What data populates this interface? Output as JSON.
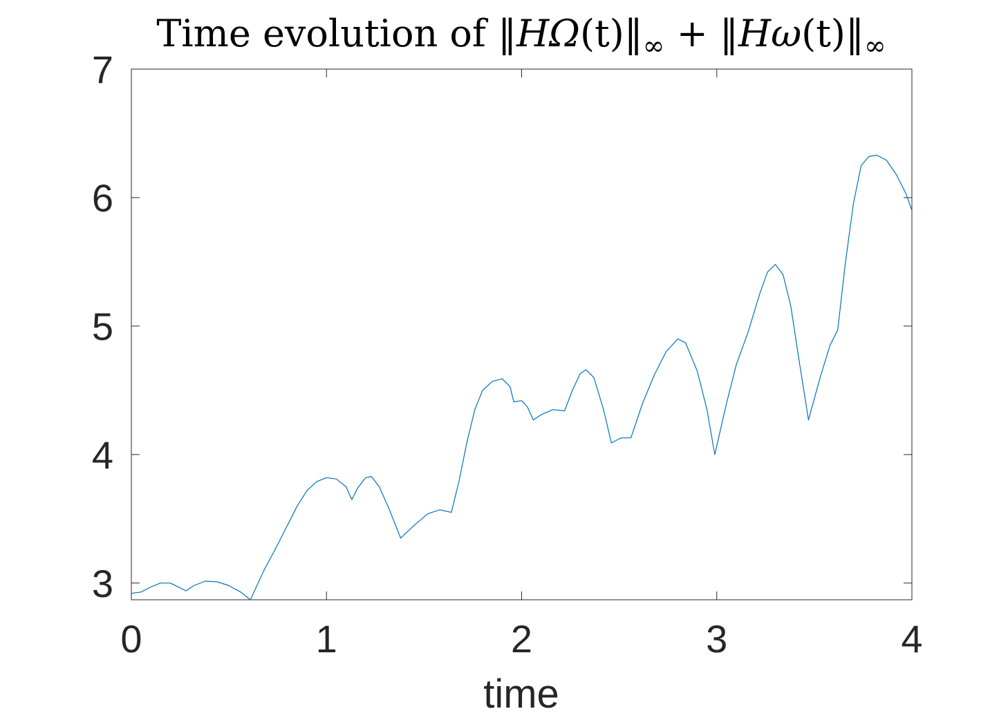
{
  "chart_data": {
    "type": "line",
    "title": {
      "prefix": "Time evolution of ",
      "term1_var": "HΩ",
      "term1_arg": "(t)",
      "plus": " + ",
      "term2_var": "Hω",
      "term2_arg": "(t)",
      "norm": "‖",
      "sub": "∞"
    },
    "xlabel": "time",
    "ylabel": "",
    "xlim": [
      0,
      4
    ],
    "ylim": [
      2.87,
      7
    ],
    "xticks": [
      0,
      1,
      2,
      3,
      4
    ],
    "yticks": [
      3,
      4,
      5,
      6,
      7
    ],
    "xtick_labels": [
      "0",
      "1",
      "2",
      "3",
      "4"
    ],
    "ytick_labels": [
      "3",
      "4",
      "5",
      "6",
      "7"
    ],
    "grid": false,
    "box": true,
    "series": [
      {
        "color": "#0072BD",
        "points": [
          [
            0.0,
            2.92
          ],
          [
            0.05,
            2.93
          ],
          [
            0.1,
            2.97
          ],
          [
            0.15,
            3.0
          ],
          [
            0.2,
            3.0
          ],
          [
            0.24,
            2.97
          ],
          [
            0.28,
            2.94
          ],
          [
            0.32,
            2.98
          ],
          [
            0.38,
            3.015
          ],
          [
            0.44,
            3.01
          ],
          [
            0.5,
            2.98
          ],
          [
            0.56,
            2.93
          ],
          [
            0.61,
            2.87
          ],
          [
            0.68,
            3.1
          ],
          [
            0.75,
            3.3
          ],
          [
            0.8,
            3.45
          ],
          [
            0.85,
            3.6
          ],
          [
            0.9,
            3.72
          ],
          [
            0.95,
            3.79
          ],
          [
            1.0,
            3.82
          ],
          [
            1.05,
            3.81
          ],
          [
            1.1,
            3.75
          ],
          [
            1.13,
            3.65
          ],
          [
            1.16,
            3.74
          ],
          [
            1.2,
            3.82
          ],
          [
            1.23,
            3.83
          ],
          [
            1.27,
            3.75
          ],
          [
            1.32,
            3.58
          ],
          [
            1.38,
            3.35
          ],
          [
            1.45,
            3.45
          ],
          [
            1.52,
            3.54
          ],
          [
            1.58,
            3.57
          ],
          [
            1.64,
            3.55
          ],
          [
            1.68,
            3.8
          ],
          [
            1.72,
            4.1
          ],
          [
            1.76,
            4.35
          ],
          [
            1.8,
            4.5
          ],
          [
            1.85,
            4.57
          ],
          [
            1.9,
            4.59
          ],
          [
            1.94,
            4.53
          ],
          [
            1.96,
            4.41
          ],
          [
            2.0,
            4.42
          ],
          [
            2.03,
            4.37
          ],
          [
            2.06,
            4.27
          ],
          [
            2.1,
            4.31
          ],
          [
            2.16,
            4.35
          ],
          [
            2.22,
            4.34
          ],
          [
            2.26,
            4.5
          ],
          [
            2.3,
            4.63
          ],
          [
            2.33,
            4.66
          ],
          [
            2.37,
            4.6
          ],
          [
            2.42,
            4.35
          ],
          [
            2.46,
            4.09
          ],
          [
            2.51,
            4.13
          ],
          [
            2.56,
            4.13
          ],
          [
            2.62,
            4.4
          ],
          [
            2.68,
            4.62
          ],
          [
            2.74,
            4.8
          ],
          [
            2.8,
            4.9
          ],
          [
            2.84,
            4.87
          ],
          [
            2.9,
            4.65
          ],
          [
            2.95,
            4.35
          ],
          [
            2.99,
            4.0
          ],
          [
            3.05,
            4.4
          ],
          [
            3.1,
            4.7
          ],
          [
            3.16,
            4.95
          ],
          [
            3.22,
            5.25
          ],
          [
            3.26,
            5.42
          ],
          [
            3.3,
            5.48
          ],
          [
            3.34,
            5.4
          ],
          [
            3.38,
            5.15
          ],
          [
            3.42,
            4.75
          ],
          [
            3.47,
            4.27
          ],
          [
            3.53,
            4.6
          ],
          [
            3.58,
            4.85
          ],
          [
            3.62,
            4.97
          ],
          [
            3.66,
            5.5
          ],
          [
            3.7,
            5.95
          ],
          [
            3.74,
            6.25
          ],
          [
            3.78,
            6.32
          ],
          [
            3.82,
            6.33
          ],
          [
            3.87,
            6.29
          ],
          [
            3.92,
            6.18
          ],
          [
            3.97,
            6.03
          ],
          [
            4.0,
            5.9
          ]
        ]
      }
    ]
  }
}
